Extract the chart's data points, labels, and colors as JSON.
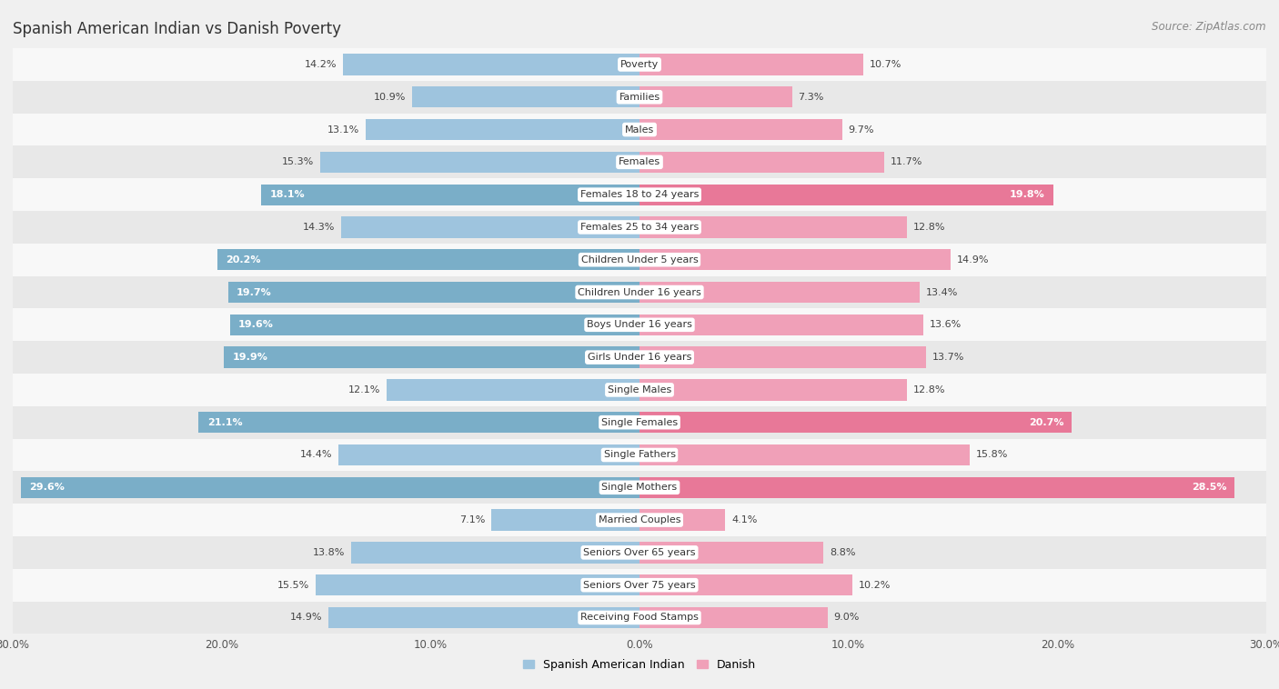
{
  "title": "Spanish American Indian vs Danish Poverty",
  "source": "Source: ZipAtlas.com",
  "categories": [
    "Poverty",
    "Families",
    "Males",
    "Females",
    "Females 18 to 24 years",
    "Females 25 to 34 years",
    "Children Under 5 years",
    "Children Under 16 years",
    "Boys Under 16 years",
    "Girls Under 16 years",
    "Single Males",
    "Single Females",
    "Single Fathers",
    "Single Mothers",
    "Married Couples",
    "Seniors Over 65 years",
    "Seniors Over 75 years",
    "Receiving Food Stamps"
  ],
  "left_values": [
    14.2,
    10.9,
    13.1,
    15.3,
    18.1,
    14.3,
    20.2,
    19.7,
    19.6,
    19.9,
    12.1,
    21.1,
    14.4,
    29.6,
    7.1,
    13.8,
    15.5,
    14.9
  ],
  "right_values": [
    10.7,
    7.3,
    9.7,
    11.7,
    19.8,
    12.8,
    14.9,
    13.4,
    13.6,
    13.7,
    12.8,
    20.7,
    15.8,
    28.5,
    4.1,
    8.8,
    10.2,
    9.0
  ],
  "left_color_normal": "#9ec4de",
  "right_color_normal": "#f0a0b8",
  "left_color_highlight": "#7aaec8",
  "right_color_highlight": "#e87898",
  "highlight_threshold": 17.0,
  "left_label": "Spanish American Indian",
  "right_label": "Danish",
  "axis_max": 30.0,
  "background_color": "#f0f0f0",
  "row_color_light": "#f8f8f8",
  "row_color_dark": "#e8e8e8",
  "title_fontsize": 12,
  "source_fontsize": 8.5,
  "cat_fontsize": 8.0,
  "value_fontsize": 8.0,
  "legend_fontsize": 9
}
